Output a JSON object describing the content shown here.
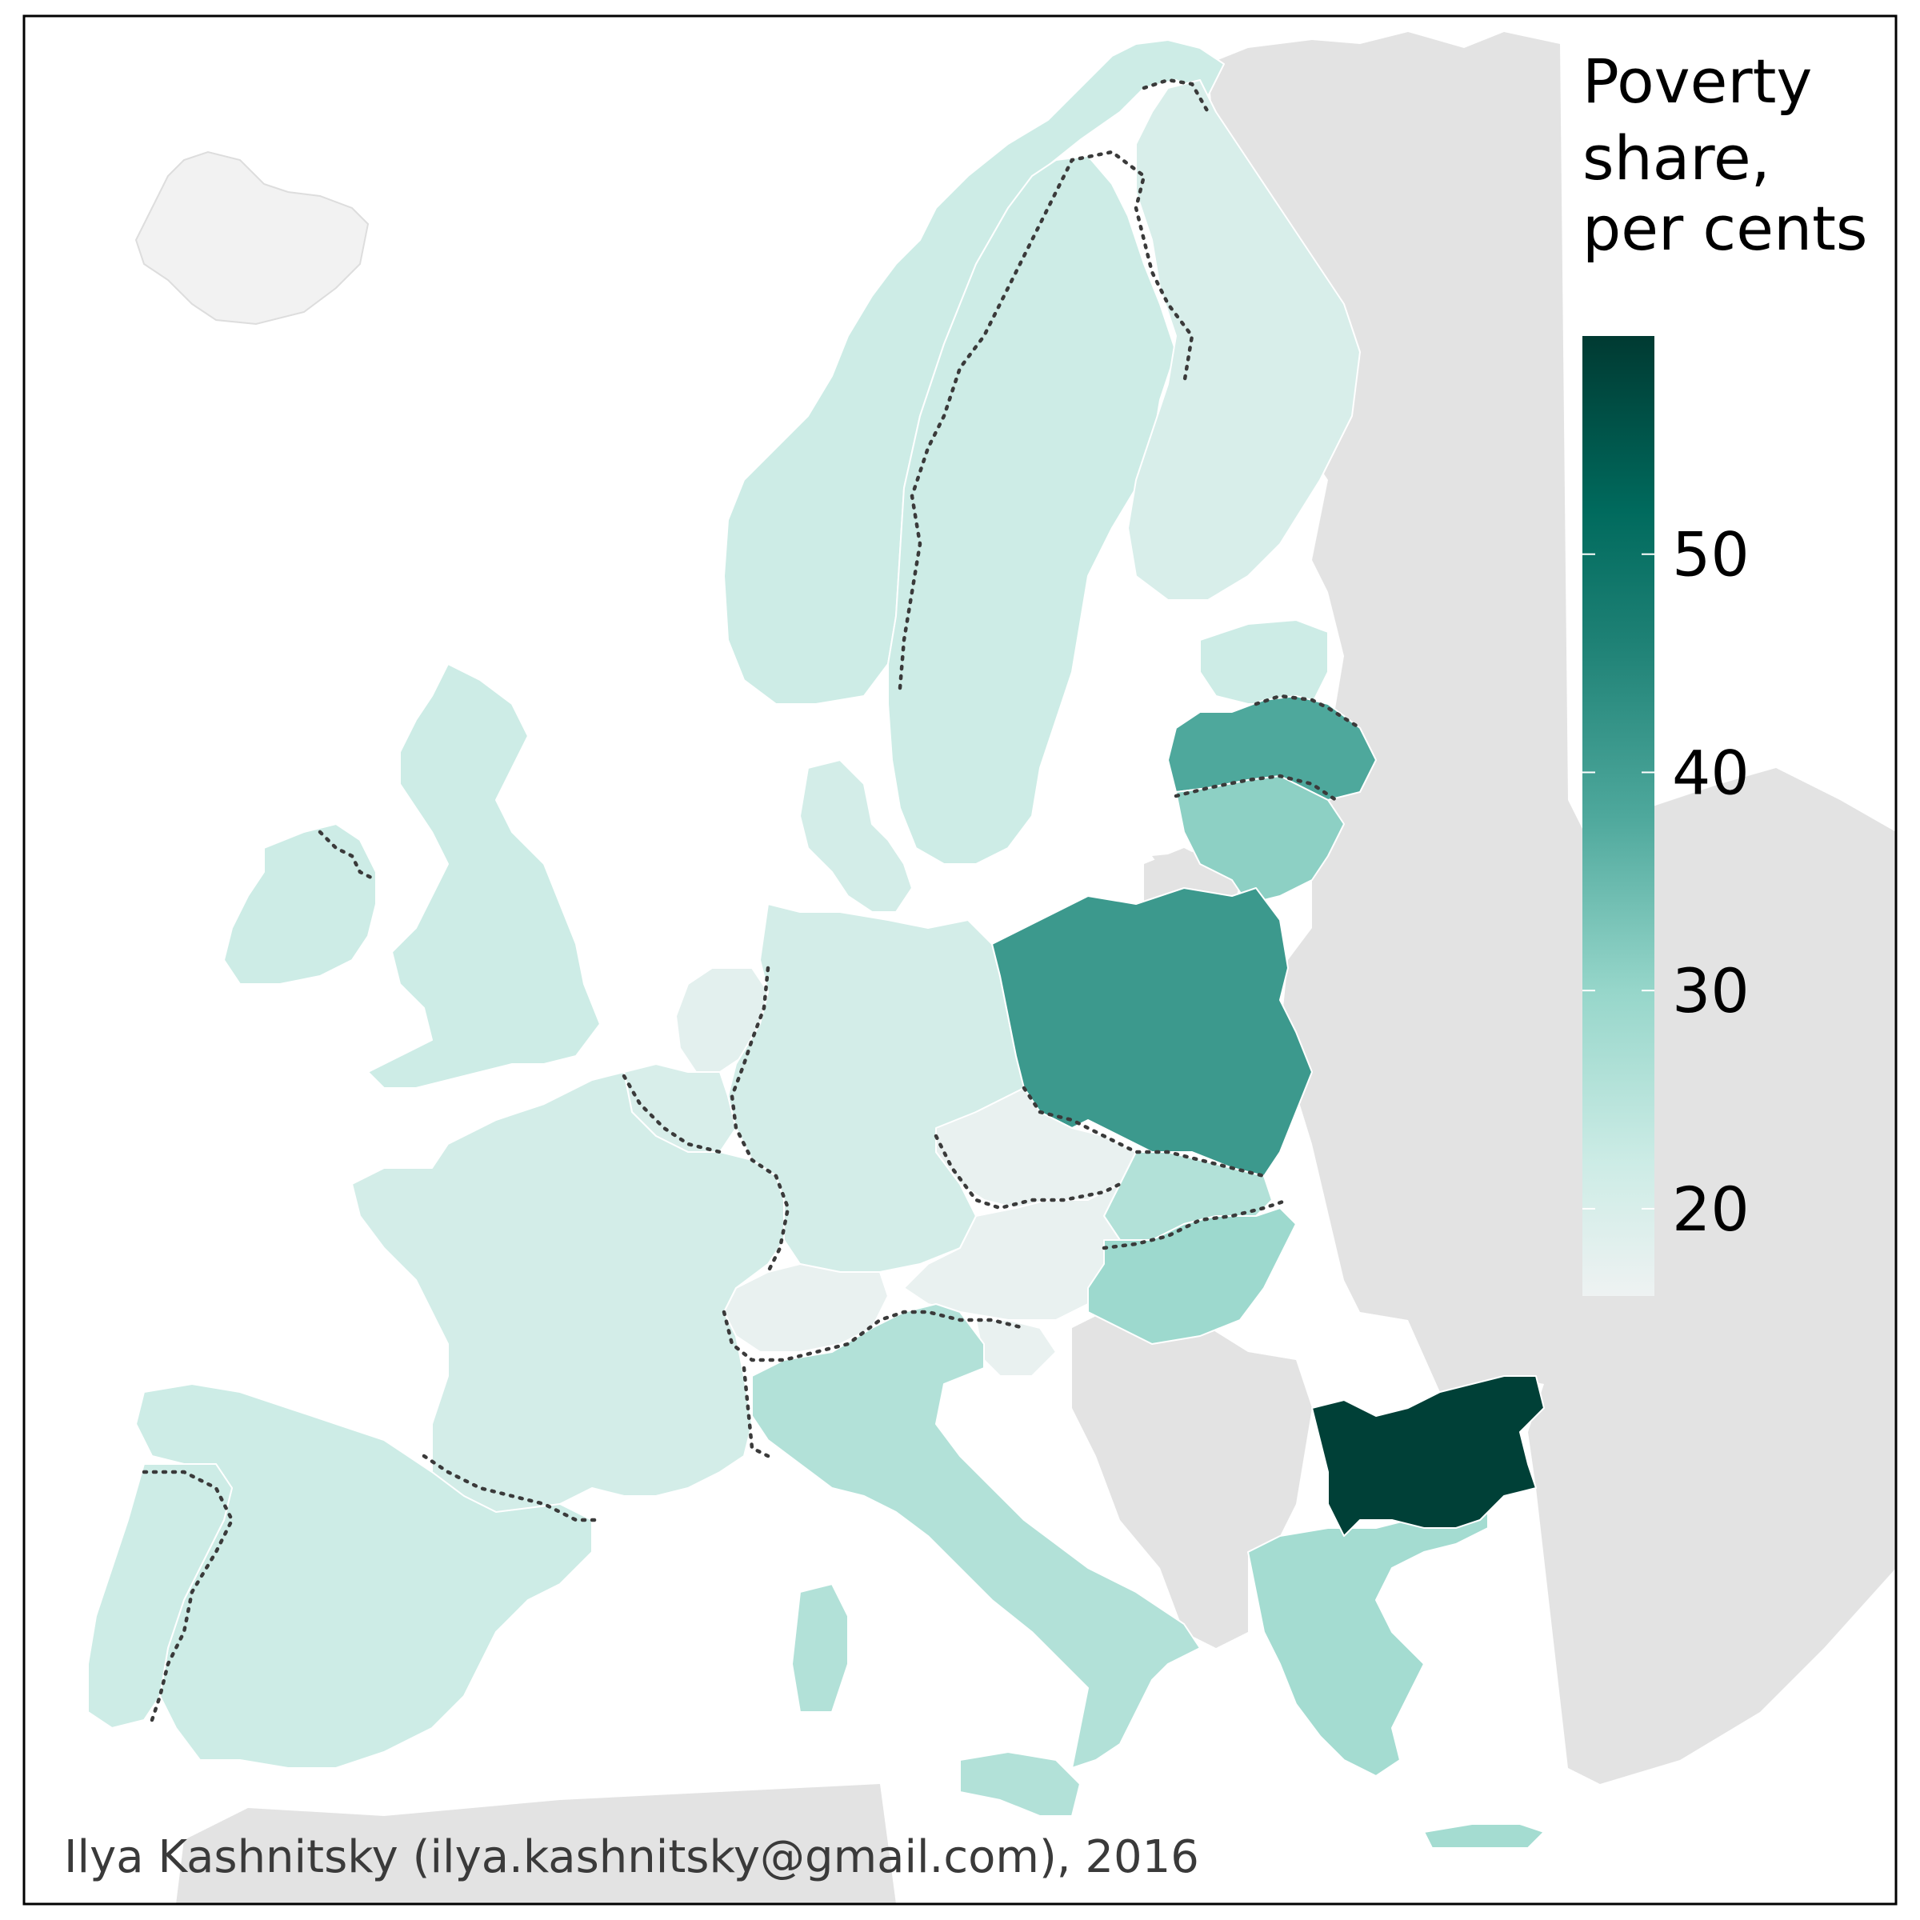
{
  "legend": {
    "title_lines": [
      "Poverty",
      "share,",
      "per cents"
    ],
    "ticks": [
      {
        "value": 20,
        "label": "20"
      },
      {
        "value": 30,
        "label": "30"
      },
      {
        "value": 40,
        "label": "40"
      },
      {
        "value": 50,
        "label": "50"
      }
    ],
    "min": 16,
    "max": 60,
    "gradient_stops": [
      {
        "value": 16,
        "color": "#eef2f2"
      },
      {
        "value": 22,
        "color": "#cdece6"
      },
      {
        "value": 30,
        "color": "#96d6ca"
      },
      {
        "value": 38,
        "color": "#4ea89c"
      },
      {
        "value": 46,
        "color": "#1e8175"
      },
      {
        "value": 52,
        "color": "#006a5d"
      },
      {
        "value": 60,
        "color": "#003a32"
      }
    ]
  },
  "credit": "Ilya Kashnitsky (ilya.kashnitsky@gmail.com), 2016",
  "colors": {
    "background": "#ffffff",
    "non_eu_land": "#e3e3e3",
    "no_data": "#f2f2f2",
    "border_dotted": "#3a3a3a",
    "frame": "#000000"
  },
  "chart_data": {
    "type": "choropleth",
    "title": "Poverty share, per cents",
    "scale": "continuous",
    "legend_placement": "top-right",
    "regions": [
      {
        "name": "Bulgaria",
        "value": 59
      },
      {
        "name": "Latvia",
        "value": 38
      },
      {
        "name": "Poland",
        "value": 41
      },
      {
        "name": "Lithuania",
        "value": 31
      },
      {
        "name": "Hungary",
        "value": 29
      },
      {
        "name": "Slovakia",
        "value": 26
      },
      {
        "name": "Greece",
        "value": 28
      },
      {
        "name": "Italy",
        "value": 26
      },
      {
        "name": "Estonia",
        "value": 22
      },
      {
        "name": "United Kingdom",
        "value": 22
      },
      {
        "name": "Ireland",
        "value": 22
      },
      {
        "name": "Spain",
        "value": 22
      },
      {
        "name": "Portugal",
        "value": 22
      },
      {
        "name": "Norway",
        "value": 22
      },
      {
        "name": "Sweden",
        "value": 22
      },
      {
        "name": "Denmark",
        "value": 21
      },
      {
        "name": "Germany",
        "value": 21
      },
      {
        "name": "France",
        "value": 21
      },
      {
        "name": "Finland",
        "value": 20
      },
      {
        "name": "Belgium",
        "value": 20
      },
      {
        "name": "Netherlands",
        "value": 18
      },
      {
        "name": "Czech Republic",
        "value": 17
      },
      {
        "name": "Austria",
        "value": 17
      },
      {
        "name": "Switzerland",
        "value": 17
      },
      {
        "name": "Slovenia",
        "value": 17
      }
    ]
  }
}
